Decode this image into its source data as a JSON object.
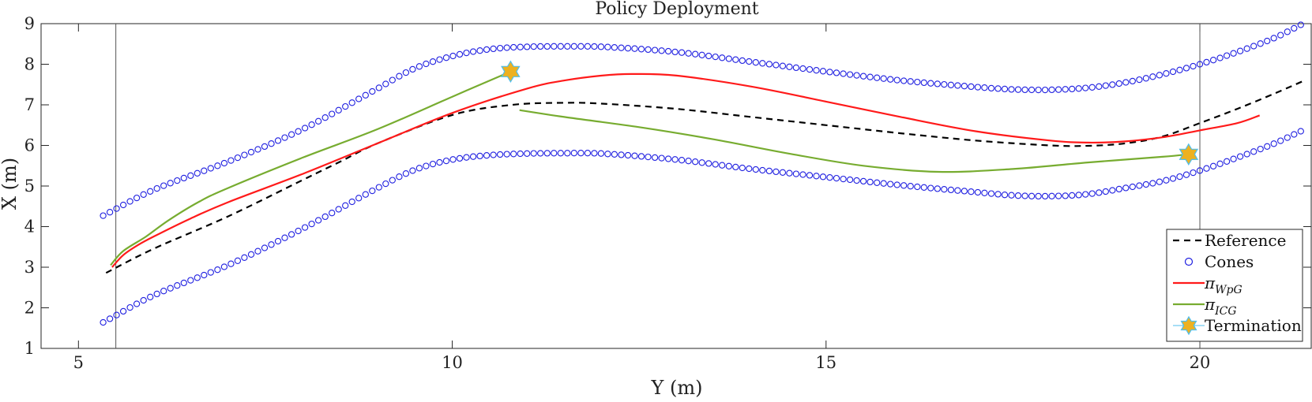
{
  "chart_data": {
    "type": "line",
    "title": "Policy Deployment",
    "xlabel": "Y (m)",
    "ylabel": "X (m)",
    "xlim": [
      4.5,
      21.5
    ],
    "ylim": [
      1,
      9
    ],
    "xticks": [
      5,
      10,
      15,
      20
    ],
    "yticks": [
      1,
      2,
      3,
      4,
      5,
      6,
      7,
      8,
      9
    ],
    "vlines": [
      5.5,
      20.0
    ],
    "legend_position": "bottom-right",
    "legend": [
      {
        "key": "reference",
        "label": "Reference",
        "style": "dashed",
        "color": "#000000"
      },
      {
        "key": "cones",
        "label": "Cones",
        "style": "circle",
        "color": "#1f1fe0"
      },
      {
        "key": "wpg",
        "label": "π",
        "sub": "WpG",
        "style": "line",
        "color": "#ff1a1a"
      },
      {
        "key": "icg",
        "label": "π",
        "sub": "ICG",
        "style": "line",
        "color": "#77ac30"
      },
      {
        "key": "termination",
        "label": "Termination",
        "style": "star",
        "color": "#edb120"
      }
    ],
    "series": [
      {
        "name": "Reference",
        "style": "dashed",
        "color": "#000000",
        "x": [
          5.37,
          6.0,
          7.0,
          8.0,
          8.5,
          9.0,
          10.0,
          10.8,
          11.5,
          12.0,
          13.0,
          14.0,
          15.0,
          16.0,
          17.0,
          18.0,
          18.5,
          19.0,
          19.5,
          20.0,
          20.5,
          21.0,
          21.4
        ],
        "y": [
          2.86,
          3.45,
          4.25,
          5.15,
          5.6,
          6.05,
          6.75,
          7.0,
          7.05,
          7.03,
          6.9,
          6.7,
          6.5,
          6.3,
          6.12,
          6.0,
          5.99,
          6.05,
          6.22,
          6.55,
          6.9,
          7.28,
          7.6
        ]
      },
      {
        "name": "πWpG",
        "style": "line",
        "color": "#ff1a1a",
        "x": [
          5.45,
          5.6,
          5.8,
          6.0,
          6.5,
          7.0,
          8.0,
          9.0,
          10.0,
          11.0,
          11.5,
          12.0,
          12.4,
          13.0,
          14.0,
          15.0,
          16.0,
          17.0,
          18.0,
          18.5,
          19.0,
          19.5,
          20.0,
          20.5,
          20.8
        ],
        "y": [
          3.0,
          3.3,
          3.55,
          3.75,
          4.2,
          4.6,
          5.3,
          6.05,
          6.8,
          7.4,
          7.6,
          7.72,
          7.76,
          7.72,
          7.45,
          7.08,
          6.7,
          6.35,
          6.12,
          6.07,
          6.1,
          6.2,
          6.37,
          6.55,
          6.74
        ]
      },
      {
        "name": "πICG",
        "style": "line",
        "color": "#77ac30",
        "x": [
          5.43,
          5.6,
          5.9,
          6.2,
          6.6,
          7.0,
          8.0,
          9.0,
          10.0,
          10.78,
          null,
          10.9,
          11.5,
          12.5,
          13.5,
          14.5,
          15.5,
          16.5,
          17.5,
          18.5,
          19.5,
          19.85
        ],
        "y": [
          3.05,
          3.4,
          3.75,
          4.15,
          4.6,
          4.95,
          5.7,
          6.4,
          7.2,
          7.82,
          null,
          6.87,
          6.7,
          6.45,
          6.15,
          5.8,
          5.5,
          5.35,
          5.42,
          5.58,
          5.72,
          5.78
        ]
      }
    ],
    "cones": {
      "name": "Cones",
      "spacing": 0.09,
      "upper": {
        "x": [
          5.33,
          6.0,
          7.0,
          8.0,
          9.0,
          9.5,
          10.0,
          10.5,
          11.0,
          11.5,
          12.0,
          13.0,
          14.0,
          15.0,
          16.0,
          17.0,
          17.5,
          18.0,
          18.5,
          19.0,
          19.5,
          20.0,
          20.5,
          21.0,
          21.35
        ],
        "y": [
          4.27,
          4.9,
          5.6,
          6.4,
          7.4,
          7.9,
          8.2,
          8.37,
          8.43,
          8.44,
          8.43,
          8.3,
          8.06,
          7.82,
          7.6,
          7.44,
          7.38,
          7.37,
          7.42,
          7.55,
          7.75,
          8.0,
          8.3,
          8.65,
          8.97
        ]
      },
      "lower": {
        "x": [
          5.33,
          6.0,
          7.0,
          8.0,
          9.0,
          9.5,
          10.0,
          10.5,
          11.0,
          11.5,
          12.0,
          13.0,
          14.0,
          15.0,
          16.0,
          17.0,
          17.5,
          18.0,
          18.5,
          19.0,
          19.5,
          20.0,
          20.5,
          21.0,
          21.35
        ],
        "y": [
          1.64,
          2.3,
          3.05,
          3.95,
          4.95,
          5.4,
          5.65,
          5.76,
          5.8,
          5.81,
          5.8,
          5.65,
          5.42,
          5.22,
          5.02,
          4.85,
          4.77,
          4.75,
          4.8,
          4.95,
          5.12,
          5.38,
          5.7,
          6.05,
          6.35
        ]
      }
    },
    "termination_points": [
      {
        "x": 10.78,
        "y": 7.82
      },
      {
        "x": 19.85,
        "y": 5.78
      }
    ]
  }
}
